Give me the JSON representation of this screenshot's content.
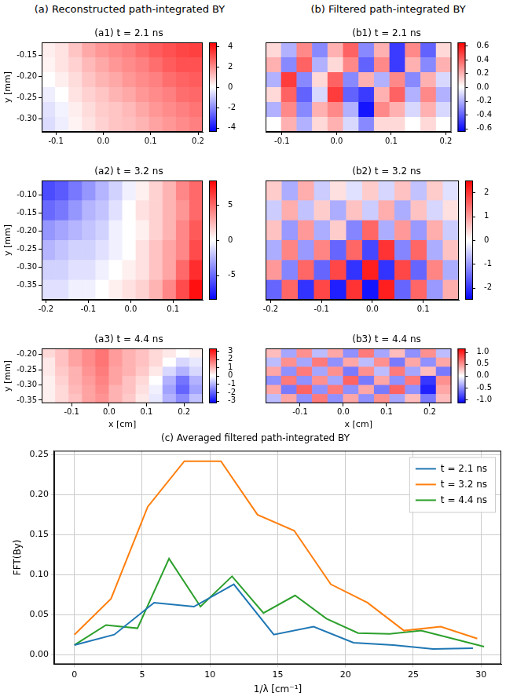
{
  "headings": [
    "(a) Reconstructed path-integrated BY",
    "(b) Filtered path-integrated BY"
  ],
  "chart_data": [
    {
      "type": "heatmap",
      "title": "(a1) t = 2.1 ns",
      "ylabel": "y [mm]",
      "xlim": [
        -0.13,
        0.21
      ],
      "xticks": [
        -0.1,
        {
          "value": 0,
          "label": "0.0"
        },
        0.1,
        0.2
      ],
      "ylim": [
        -0.33,
        -0.12
      ],
      "yticks": [
        -0.15,
        {
          "value": -0.2,
          "label": "-0.20"
        },
        -0.25,
        {
          "value": -0.3,
          "label": "-0.30"
        }
      ],
      "cblim": [
        -4.4,
        4.4
      ],
      "cbticks": [
        -4,
        -2,
        0,
        2,
        4
      ],
      "cells": [
        [
          0.3,
          0.5,
          1.0,
          1.5,
          1.8,
          2.0,
          2.2,
          2.5,
          2.8,
          3.0,
          3.2,
          3.3
        ],
        [
          0.2,
          0.5,
          0.8,
          1.2,
          1.5,
          1.8,
          2.0,
          2.2,
          2.5,
          2.8,
          3.0,
          3.0
        ],
        [
          0.0,
          0.3,
          0.6,
          1.0,
          1.3,
          1.5,
          1.8,
          2.0,
          2.2,
          2.5,
          2.7,
          2.8
        ],
        [
          -0.3,
          0.0,
          0.5,
          0.8,
          1.0,
          1.3,
          1.5,
          1.8,
          2.0,
          2.2,
          2.5,
          2.6
        ],
        [
          -0.5,
          -0.2,
          0.3,
          0.6,
          0.9,
          1.0,
          1.2,
          1.5,
          1.8,
          2.0,
          2.2,
          2.4
        ],
        [
          -0.6,
          -0.3,
          0.2,
          0.5,
          0.8,
          1.0,
          1.1,
          1.3,
          1.6,
          1.8,
          2.0,
          2.2
        ]
      ]
    },
    {
      "type": "heatmap",
      "title": "(a2) t = 3.2 ns",
      "ylabel": "y [mm]",
      "xlim": [
        -0.21,
        0.17
      ],
      "xticks": [
        -0.2,
        -0.1,
        {
          "value": 0,
          "label": "0.0"
        },
        0.1
      ],
      "ylim": [
        -0.39,
        -0.06
      ],
      "yticks": [
        {
          "value": -0.1,
          "label": "-0.10"
        },
        -0.15,
        {
          "value": -0.2,
          "label": "-0.20"
        },
        -0.25,
        {
          "value": -0.3,
          "label": "-0.30"
        },
        -0.35
      ],
      "cblim": [
        -8.5,
        8.5
      ],
      "cbticks": [
        -5,
        0,
        5
      ],
      "cells": [
        [
          -6,
          -5.5,
          -4.5,
          -3.5,
          -2.5,
          -1.5,
          -0.5,
          0.5,
          1.5,
          2.5,
          4,
          5
        ],
        [
          -5,
          -4.5,
          -3.5,
          -2.5,
          -2,
          -1,
          0,
          1,
          1.5,
          2.5,
          3.5,
          5
        ],
        [
          -3.5,
          -3,
          -2.5,
          -2,
          -1.5,
          -0.5,
          0,
          0.5,
          1.5,
          2.5,
          4,
          5.5
        ],
        [
          -2.5,
          -2,
          -1.5,
          -1.5,
          -1,
          -0.5,
          0,
          1,
          2,
          3,
          4,
          6
        ],
        [
          -1.5,
          -1.5,
          -1,
          -1,
          -0.5,
          0,
          0.5,
          1,
          2,
          3,
          5,
          7
        ],
        [
          -1,
          -1,
          -0.5,
          -0.5,
          0,
          0.5,
          1,
          1.5,
          2.5,
          4,
          6,
          8
        ]
      ]
    },
    {
      "type": "heatmap",
      "title": "(a3) t = 4.4 ns",
      "ylabel": "y [mm]",
      "xlabel": "x [cm]",
      "xlim": [
        -0.18,
        0.25
      ],
      "xticks": [
        -0.1,
        {
          "value": 0,
          "label": "0.0"
        },
        0.1,
        0.2
      ],
      "ylim": [
        -0.36,
        -0.18
      ],
      "yticks": [
        {
          "value": -0.2,
          "label": "-0.20"
        },
        -0.25,
        {
          "value": -0.3,
          "label": "-0.30"
        },
        -0.35
      ],
      "cblim": [
        -3.3,
        3.3
      ],
      "cbticks": [
        -3,
        -2,
        -1,
        0,
        1,
        2,
        3
      ],
      "cells": [
        [
          0.5,
          0.8,
          1.2,
          1.5,
          1.8,
          1.3,
          1.0,
          0.8,
          0.5,
          0.3,
          0.0,
          0.2
        ],
        [
          0.3,
          0.8,
          1.2,
          1.5,
          1.8,
          1.3,
          1.0,
          0.8,
          0.5,
          0.0,
          -0.5,
          -0.3
        ],
        [
          0.3,
          0.7,
          1.0,
          1.4,
          1.7,
          1.2,
          1.0,
          0.7,
          0.3,
          -0.5,
          -1.0,
          -0.5
        ],
        [
          0.2,
          0.6,
          1.0,
          1.3,
          1.6,
          1.2,
          0.8,
          0.5,
          0.0,
          -1.0,
          -1.8,
          -1.0
        ],
        [
          0.2,
          0.5,
          0.9,
          1.2,
          1.5,
          1.0,
          0.8,
          0.4,
          -0.2,
          -1.2,
          -2.0,
          -1.2
        ],
        [
          0.2,
          0.5,
          0.8,
          1.2,
          1.4,
          1.0,
          0.7,
          0.3,
          -0.3,
          -1.0,
          -1.5,
          -0.8
        ]
      ]
    },
    {
      "type": "heatmap",
      "title": "(b1) t = 2.1 ns",
      "tick_labels": "x",
      "xlim": [
        -0.13,
        0.21
      ],
      "xticks": [
        -0.1,
        {
          "value": 0,
          "label": "0.0"
        },
        0.1,
        0.2
      ],
      "ylim": [
        -0.33,
        -0.12
      ],
      "cblim": [
        -0.65,
        0.65
      ],
      "cbticks": [
        -0.6,
        -0.4,
        -0.2,
        {
          "value": 0,
          "label": "0.0"
        },
        0.2,
        0.4,
        0.6
      ],
      "cells": [
        [
          0.1,
          -0.2,
          0.3,
          -0.3,
          0.2,
          0.4,
          -0.3,
          0.2,
          -0.5,
          0.3,
          -0.4,
          0.1
        ],
        [
          0.2,
          -0.3,
          0.4,
          -0.2,
          0.1,
          0.3,
          -0.4,
          0.3,
          -0.5,
          0.2,
          -0.3,
          0.2
        ],
        [
          -0.2,
          0.5,
          -0.3,
          0.1,
          0.4,
          -0.3,
          0.2,
          -0.2,
          0.3,
          -0.3,
          0.2,
          -0.1
        ],
        [
          0.1,
          0.4,
          -0.4,
          -0.1,
          0.5,
          -0.4,
          -0.5,
          0.2,
          0.4,
          -0.2,
          0.3,
          -0.2
        ],
        [
          -0.2,
          0.3,
          -0.3,
          0.2,
          0.3,
          -0.2,
          -0.6,
          0.3,
          0.2,
          -0.1,
          0.2,
          -0.1
        ],
        [
          0.0,
          0.2,
          -0.2,
          0.1,
          0.2,
          -0.1,
          -0.3,
          0.1,
          0.1,
          0.0,
          0.1,
          0.0
        ]
      ]
    },
    {
      "type": "heatmap",
      "title": "(b2) t = 3.2 ns",
      "tick_labels": "x",
      "xlim": [
        -0.21,
        0.17
      ],
      "xticks": [
        -0.2,
        -0.1,
        {
          "value": 0,
          "label": "0.0"
        },
        0.1
      ],
      "ylim": [
        -0.39,
        -0.06
      ],
      "cblim": [
        -2.5,
        2.5
      ],
      "cbticks": [
        -2,
        -1,
        0,
        1,
        2
      ],
      "cells": [
        [
          0.5,
          -0.8,
          0.8,
          -0.5,
          0.3,
          -0.3,
          0.5,
          -0.4,
          0.6,
          -0.6,
          0.5,
          -0.3
        ],
        [
          -0.5,
          0.8,
          -0.6,
          0.5,
          -0.8,
          0.6,
          -0.5,
          0.8,
          -0.8,
          0.6,
          -0.4,
          0.3
        ],
        [
          0.6,
          -1.0,
          1.0,
          -0.8,
          0.5,
          -1.2,
          1.5,
          -0.8,
          1.0,
          -1.0,
          0.8,
          -0.5
        ],
        [
          -0.8,
          1.2,
          -1.0,
          1.2,
          -1.5,
          1.5,
          -1.8,
          2.0,
          -1.2,
          1.5,
          -0.8,
          0.6
        ],
        [
          1.0,
          -1.2,
          1.5,
          -1.5,
          1.8,
          -2.0,
          2.2,
          -2.0,
          1.8,
          -1.5,
          1.2,
          -0.8
        ],
        [
          -1.5,
          1.5,
          -2.0,
          1.8,
          -2.2,
          2.0,
          -2.3,
          2.2,
          -1.5,
          1.5,
          -1.0,
          0.8
        ]
      ]
    },
    {
      "type": "heatmap",
      "title": "(b3) t = 4.4 ns",
      "tick_labels": "x",
      "xlabel": "x [cm]",
      "xlim": [
        -0.18,
        0.25
      ],
      "xticks": [
        -0.1,
        {
          "value": 0,
          "label": "0.0"
        },
        0.1,
        0.2
      ],
      "ylim": [
        -0.36,
        -0.18
      ],
      "cblim": [
        -1.15,
        1.15
      ],
      "cbticks": [
        {
          "value": -1,
          "label": "-1.0"
        },
        -0.5,
        {
          "value": 0,
          "label": "0.0"
        },
        0.5,
        {
          "value": 1,
          "label": "1.0"
        }
      ],
      "cells": [
        [
          0.3,
          -0.4,
          0.5,
          -0.3,
          0.4,
          -0.5,
          0.6,
          -0.4,
          0.3,
          -0.5,
          0.5,
          -0.3
        ],
        [
          -0.3,
          0.5,
          -0.4,
          0.6,
          -0.5,
          0.4,
          -0.3,
          0.5,
          -0.6,
          0.4,
          -0.5,
          0.4
        ],
        [
          0.4,
          -0.5,
          0.6,
          -0.4,
          0.5,
          -0.6,
          0.5,
          -0.3,
          0.6,
          -0.4,
          0.3,
          -0.6
        ],
        [
          -0.5,
          0.6,
          -0.5,
          0.5,
          -0.4,
          0.7,
          -0.6,
          0.4,
          -0.5,
          0.6,
          -0.9,
          0.5
        ],
        [
          0.4,
          -0.6,
          0.7,
          -0.5,
          0.6,
          -0.5,
          0.4,
          -0.6,
          0.7,
          -0.5,
          -1.0,
          0.4
        ],
        [
          -0.3,
          0.4,
          -0.5,
          0.6,
          -0.5,
          0.4,
          -0.5,
          0.5,
          -0.4,
          0.3,
          -0.6,
          0.3
        ]
      ]
    },
    {
      "type": "line",
      "title": "(c) Averaged filtered path-integrated BY",
      "xlabel": "1/λ [cm⁻¹]",
      "ylabel": "FFT(By)",
      "xlim": [
        -1.5,
        31.5
      ],
      "xticks": [
        0,
        5,
        10,
        15,
        20,
        25,
        30
      ],
      "ylim": [
        -0.012,
        0.255
      ],
      "yticks": [
        {
          "value": 0,
          "label": "0.00"
        },
        0.05,
        {
          "value": 0.1,
          "label": "0.10"
        },
        0.15,
        {
          "value": 0.2,
          "label": "0.20"
        },
        0.25
      ],
      "grid": true,
      "legend": "upper right",
      "series": [
        {
          "name": "t = 2.1 ns",
          "color": "#1f77b4",
          "x": [
            0,
            2.94,
            5.88,
            8.82,
            11.76,
            14.71,
            17.65,
            20.59,
            23.53,
            26.47,
            29.41
          ],
          "values": [
            0.012,
            0.025,
            0.065,
            0.06,
            0.088,
            0.025,
            0.035,
            0.015,
            0.012,
            0.007,
            0.008
          ]
        },
        {
          "name": "t = 3.2 ns",
          "color": "#ff7f0e",
          "x": [
            0,
            2.7,
            5.41,
            8.11,
            10.81,
            13.51,
            16.22,
            18.92,
            21.62,
            24.32,
            27.03,
            29.73
          ],
          "values": [
            0.025,
            0.07,
            0.185,
            0.242,
            0.242,
            0.175,
            0.155,
            0.088,
            0.065,
            0.03,
            0.035,
            0.02
          ]
        },
        {
          "name": "t = 4.4 ns",
          "color": "#2ca02c",
          "x": [
            0,
            2.33,
            4.65,
            6.98,
            9.3,
            11.63,
            13.95,
            16.28,
            18.6,
            20.93,
            23.26,
            25.58,
            27.91,
            30.23
          ],
          "values": [
            0.012,
            0.037,
            0.033,
            0.12,
            0.06,
            0.098,
            0.052,
            0.074,
            0.045,
            0.027,
            0.026,
            0.03,
            0.02,
            0.01
          ]
        }
      ]
    }
  ]
}
